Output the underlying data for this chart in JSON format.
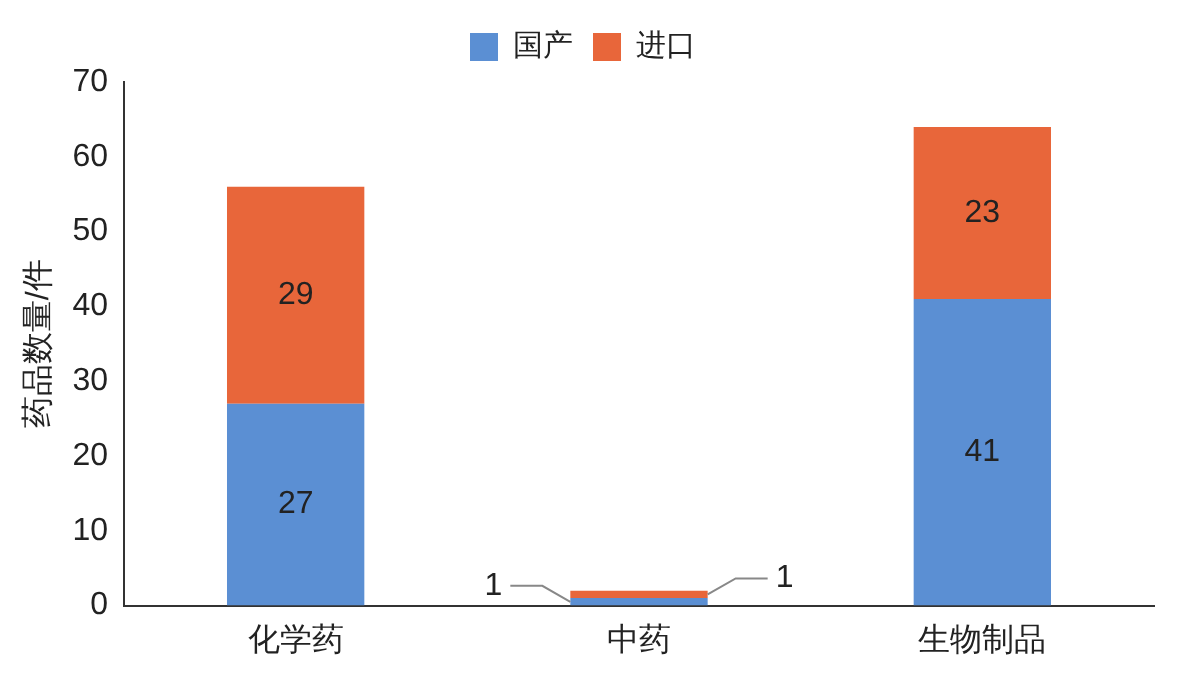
{
  "chart_data": {
    "type": "bar",
    "stacked": true,
    "ylabel": "药品数量/件",
    "categories": [
      "化学药",
      "中药",
      "生物制品"
    ],
    "series": [
      {
        "name": "国产",
        "color": "#5b8fd3",
        "values": [
          27,
          1,
          41
        ]
      },
      {
        "name": "进口",
        "color": "#e8663a",
        "values": [
          29,
          1,
          23
        ]
      }
    ],
    "ylim": [
      0,
      70
    ],
    "yticks": [
      0,
      10,
      20,
      30,
      40,
      50,
      60,
      70
    ],
    "grid": false,
    "legend": "top",
    "data_labels": true
  }
}
